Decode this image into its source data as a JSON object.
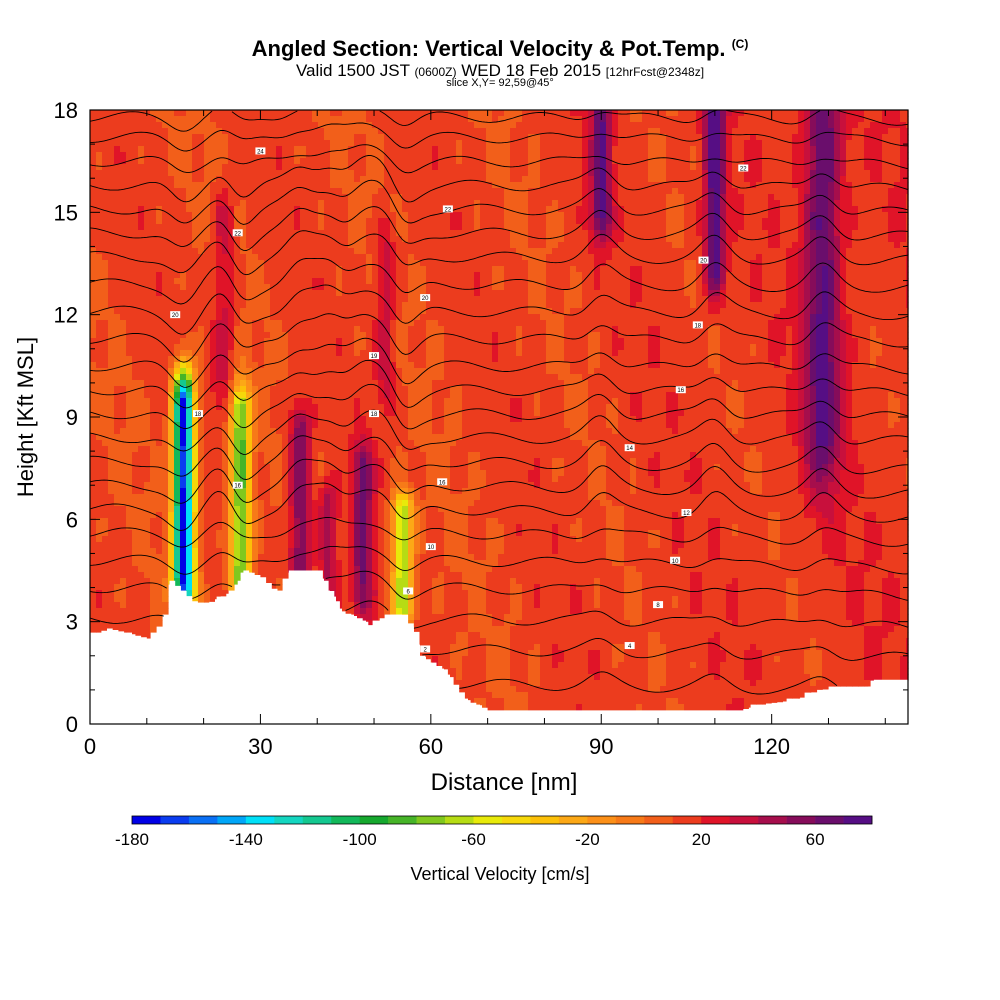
{
  "title": {
    "main": "Angled Section: Vertical Velocity & Pot.Temp.",
    "copyright": "(C)",
    "valid_prefix": "Valid 1500 JST",
    "utc": "(0600Z)",
    "valid_date": "WED 18 Feb 2015",
    "forecast": "[12hrFcst@2348z]",
    "slice": "slice X,Y= 92,59@45°"
  },
  "chart_data": {
    "type": "heatmap",
    "xlabel": "Distance [nm]",
    "ylabel": "Height [Kft MSL]",
    "xlim": [
      0,
      144
    ],
    "ylim": [
      0,
      18
    ],
    "x_ticks": [
      "0",
      "30",
      "60",
      "90",
      "120"
    ],
    "x_tick_values": [
      0,
      30,
      60,
      90,
      120
    ],
    "y_ticks": [
      "0",
      "3",
      "6",
      "9",
      "12",
      "15",
      "18"
    ],
    "y_tick_values": [
      0,
      3,
      6,
      9,
      12,
      15,
      18
    ],
    "colorbar": {
      "label": "Vertical Velocity [cm/s]",
      "min": -180,
      "max": 80,
      "step": 10,
      "tick_labels": [
        "-180",
        "-140",
        "-100",
        "-60",
        "-20",
        "20",
        "60"
      ],
      "tick_values": [
        -180,
        -140,
        -100,
        -60,
        -20,
        20,
        60
      ],
      "colors": [
        "#0000e6",
        "#0a3cf0",
        "#0a70f5",
        "#00a6f8",
        "#00e0f8",
        "#14d6c0",
        "#14c890",
        "#12b85a",
        "#16a82e",
        "#46b428",
        "#80c81e",
        "#b6dc14",
        "#e8ea0a",
        "#f6d80a",
        "#fcc008",
        "#fca816",
        "#fc9018",
        "#f77a18",
        "#f25f1a",
        "#ec3c1e",
        "#e01428",
        "#c8103c",
        "#a60e4c",
        "#860c5a",
        "#6a0e6c",
        "#560e84"
      ]
    },
    "background_wvel": 12,
    "features": [
      {
        "kind": "downdraft",
        "x": 16.5,
        "z0": 4.2,
        "z1": 9.3,
        "wvel": -175
      },
      {
        "kind": "downdraft",
        "x": 26.5,
        "z0": 4.4,
        "z1": 9.0,
        "wvel": -85
      },
      {
        "kind": "downdraft",
        "x": 55.0,
        "z0": 3.4,
        "z1": 6.2,
        "wvel": -70
      },
      {
        "kind": "updraft",
        "x": 23.5,
        "z0": 10.0,
        "z1": 14.8,
        "wvel": 35
      },
      {
        "kind": "updraft",
        "x": 37.0,
        "z0": 4.5,
        "z1": 8.5,
        "wvel": 62
      },
      {
        "kind": "updraft",
        "x": 42.0,
        "z0": 3.8,
        "z1": 6.5,
        "wvel": 45
      },
      {
        "kind": "updraft",
        "x": 48.0,
        "z0": 3.8,
        "z1": 7.5,
        "wvel": 62
      },
      {
        "kind": "updraft",
        "x": 52.0,
        "z0": 10.0,
        "z1": 14.0,
        "wvel": 35
      },
      {
        "kind": "updraft",
        "x": 90.0,
        "z0": 14.8,
        "z1": 18.0,
        "wvel": 68
      },
      {
        "kind": "updraft",
        "x": 110.0,
        "z0": 13.5,
        "z1": 18.0,
        "wvel": 75
      },
      {
        "kind": "updraft",
        "x": 129.0,
        "z0": 8.8,
        "z1": 18.0,
        "wvel": 68
      }
    ],
    "terrain": [
      {
        "x": 0,
        "z": 2.6
      },
      {
        "x": 3,
        "z": 2.8
      },
      {
        "x": 10,
        "z": 2.5
      },
      {
        "x": 13,
        "z": 2.9
      },
      {
        "x": 14,
        "z": 4.2
      },
      {
        "x": 18,
        "z": 3.6
      },
      {
        "x": 20,
        "z": 3.5
      },
      {
        "x": 25,
        "z": 3.9
      },
      {
        "x": 27,
        "z": 4.5
      },
      {
        "x": 30,
        "z": 4.3
      },
      {
        "x": 33,
        "z": 3.8
      },
      {
        "x": 35,
        "z": 4.5
      },
      {
        "x": 40,
        "z": 4.5
      },
      {
        "x": 44,
        "z": 3.3
      },
      {
        "x": 47,
        "z": 3.1
      },
      {
        "x": 49,
        "z": 2.9
      },
      {
        "x": 52,
        "z": 3.2
      },
      {
        "x": 55,
        "z": 3.2
      },
      {
        "x": 57,
        "z": 2.7
      },
      {
        "x": 58,
        "z": 2.0
      },
      {
        "x": 62,
        "z": 1.6
      },
      {
        "x": 66,
        "z": 0.7
      },
      {
        "x": 70,
        "z": 0.4
      },
      {
        "x": 114,
        "z": 0.4
      },
      {
        "x": 119,
        "z": 0.6
      },
      {
        "x": 124,
        "z": 0.7
      },
      {
        "x": 128,
        "z": 1.0
      },
      {
        "x": 137,
        "z": 1.1
      },
      {
        "x": 138,
        "z": 1.3
      },
      {
        "x": 144,
        "z": 1.3
      }
    ],
    "isentropes": {
      "levels": [
        1.2,
        2.2,
        3.1,
        4.0,
        4.8,
        5.6,
        6.3,
        7.0,
        7.7,
        8.4,
        9.1,
        9.8,
        10.5,
        11.3,
        12.1,
        12.9,
        13.7,
        14.4,
        15.1,
        15.8,
        16.5,
        17.2,
        17.8
      ],
      "labels": [
        {
          "text": "2",
          "x": 59,
          "z": 2.2
        },
        {
          "text": "4",
          "x": 95,
          "z": 2.3
        },
        {
          "text": "6",
          "x": 56,
          "z": 3.9
        },
        {
          "text": "8",
          "x": 100,
          "z": 3.5
        },
        {
          "text": "10",
          "x": 60,
          "z": 5.2
        },
        {
          "text": "10",
          "x": 103,
          "z": 4.8
        },
        {
          "text": "12",
          "x": 105,
          "z": 6.2
        },
        {
          "text": "14",
          "x": 95,
          "z": 8.1
        },
        {
          "text": "16",
          "x": 26,
          "z": 7.0
        },
        {
          "text": "16",
          "x": 62,
          "z": 7.1
        },
        {
          "text": "16",
          "x": 104,
          "z": 9.8
        },
        {
          "text": "18",
          "x": 19,
          "z": 9.1
        },
        {
          "text": "18",
          "x": 50,
          "z": 9.1
        },
        {
          "text": "18",
          "x": 107,
          "z": 11.7
        },
        {
          "text": "19",
          "x": 50,
          "z": 10.8
        },
        {
          "text": "20",
          "x": 15,
          "z": 12.0
        },
        {
          "text": "20",
          "x": 59,
          "z": 12.5
        },
        {
          "text": "20",
          "x": 108,
          "z": 13.6
        },
        {
          "text": "22",
          "x": 26,
          "z": 14.4
        },
        {
          "text": "22",
          "x": 63,
          "z": 15.1
        },
        {
          "text": "22",
          "x": 115,
          "z": 16.3
        },
        {
          "text": "24",
          "x": 30,
          "z": 16.8
        }
      ]
    }
  }
}
